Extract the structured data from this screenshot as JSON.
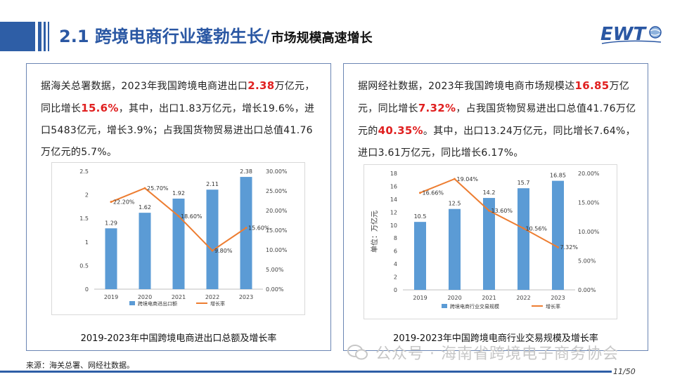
{
  "header": {
    "title_main": "2.1 跨境电商行业蓬勃生长/",
    "title_sub": "市场规模高速增长",
    "logo_text": "EWT"
  },
  "left_panel": {
    "text_parts": [
      "据海关总署数据，2023年我国跨境电商进出口",
      "2.38",
      "万亿元，同比增长",
      "15.6%",
      "，其中，出口1.83万亿元，增长19.6%，进口5483亿元，增长3.9%；占我国货物贸易进出口总值41.76万亿元的5.7%。"
    ],
    "caption": "2019-2023年中国跨境电商进出口总额及增长率"
  },
  "right_panel": {
    "text_parts": [
      "据网经社数据，2023年我国跨境电商市场规模达",
      "16.85",
      "万亿元，同比增长",
      "7.32%",
      "，占我国货物贸易进出口总值41.76万亿元的",
      "40.35%",
      "。其中，出口13.24万亿元，同比增长7.64%，进口3.61万亿元，同比增长6.17%。"
    ],
    "caption": "2019-2023年中国跨境电商行业交易规模及增长率"
  },
  "footer": {
    "source": "来源：海关总署、网经社数据。",
    "watermark": "公众号 · 海南省跨境电子商务协会",
    "page_current": "11",
    "page_total": "50"
  },
  "colors": {
    "bar": "#5b9bd5",
    "line": "#ed7d31",
    "accent_blue": "#2a57a3",
    "highlight_red": "#e02020"
  },
  "chart_data": [
    {
      "type": "bar",
      "title": "2019-2023年中国跨境电商进出口总额及增长率",
      "categories": [
        "2019",
        "2020",
        "2021",
        "2022",
        "2023"
      ],
      "series": [
        {
          "name": "跨境电商进出口额",
          "type": "bar",
          "values": [
            1.29,
            1.62,
            1.92,
            2.11,
            2.38
          ],
          "labels": [
            "1.29",
            "1.62",
            "1.92",
            "2.11",
            "2.38"
          ]
        },
        {
          "name": "增长率",
          "type": "line",
          "axis": "right",
          "values": [
            22.2,
            25.7,
            18.6,
            9.8,
            15.6
          ],
          "labels": [
            "22.20%",
            "25.70%",
            "18.60%",
            "9.80%",
            "15.60%"
          ]
        }
      ],
      "ylabel": "",
      "ylim": [
        0,
        2.5
      ],
      "yticks": [
        "0",
        "0.5",
        "1",
        "1.5",
        "2",
        "2.5"
      ],
      "y2lim": [
        0,
        30
      ],
      "y2ticks": [
        "0.00%",
        "5.00%",
        "10.00%",
        "15.00%",
        "20.00%",
        "25.00%",
        "30.00%"
      ],
      "legend": [
        "跨境电商进出口额",
        "增长率"
      ]
    },
    {
      "type": "bar",
      "title": "2019-2023年中国跨境电商行业交易规模及增长率",
      "categories": [
        "2019",
        "2020",
        "2021",
        "2022",
        "2023"
      ],
      "series": [
        {
          "name": "跨境电商行业交易规模",
          "type": "bar",
          "values": [
            10.5,
            12.5,
            14.2,
            15.7,
            16.85
          ],
          "labels": [
            "10.5",
            "12.5",
            "14.2",
            "15.7",
            "16.85"
          ]
        },
        {
          "name": "增长率",
          "type": "line",
          "axis": "right",
          "values": [
            16.66,
            19.04,
            13.6,
            10.56,
            7.32
          ],
          "labels": [
            "16.66%",
            "19.04%",
            "13.60%",
            "10.56%",
            "7.32%"
          ]
        }
      ],
      "ylabel": "单位：万亿元",
      "ylim": [
        0,
        18
      ],
      "yticks": [
        "0",
        "2",
        "4",
        "6",
        "8",
        "10",
        "12",
        "14",
        "16",
        "18"
      ],
      "y2lim": [
        0,
        20
      ],
      "y2ticks": [
        "0.00%",
        "5.00%",
        "10.00%",
        "15.00%",
        "20.00%"
      ],
      "legend": [
        "跨境电商行业交易规模",
        "增长率"
      ]
    }
  ]
}
